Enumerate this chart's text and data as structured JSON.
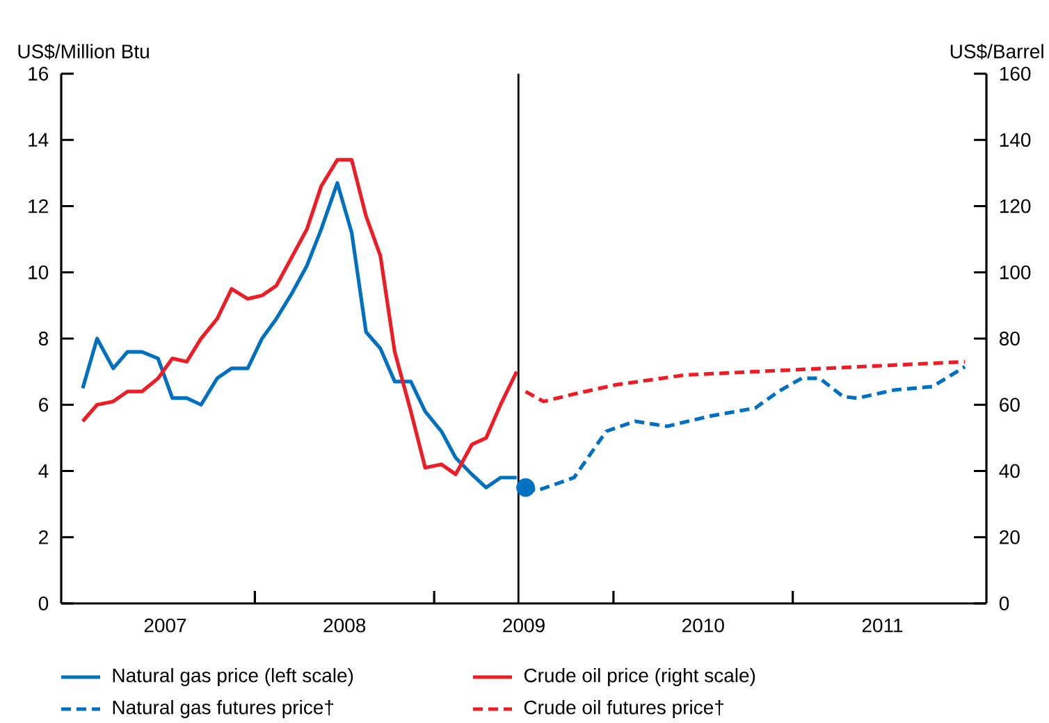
{
  "chart_data": {
    "type": "line",
    "ylabel": "US$/Million Btu",
    "y2label": "US$/Barrel",
    "xlim": [
      2006.92,
      2012.08
    ],
    "xticks": [
      {
        "value": 2007.5,
        "label": "2007"
      },
      {
        "value": 2008,
        "label": null
      },
      {
        "value": 2008.5,
        "label": "2008"
      },
      {
        "value": 2009,
        "label": null
      },
      {
        "value": 2009.5,
        "label": "2009"
      },
      {
        "value": 2010,
        "label": null
      },
      {
        "value": 2010.5,
        "label": "2010"
      },
      {
        "value": 2011,
        "label": null
      },
      {
        "value": 2011.5,
        "label": "2011"
      }
    ],
    "ylim": [
      0,
      16
    ],
    "yticks": [
      0,
      2,
      4,
      6,
      8,
      10,
      12,
      14,
      16
    ],
    "y2lim": [
      0,
      160
    ],
    "y2ticks": [
      0,
      20,
      40,
      60,
      80,
      100,
      120,
      140,
      160
    ],
    "legend": "bottom",
    "ref_lines": [
      {
        "axis": "x",
        "value": 2009.47
      }
    ],
    "series": [
      {
        "name": "Natural gas price (left scale)",
        "color": "#0070c0",
        "line_style": "solid",
        "x": [
          2007.04,
          2007.12,
          2007.21,
          2007.29,
          2007.37,
          2007.46,
          2007.54,
          2007.62,
          2007.7,
          2007.79,
          2007.87,
          2007.96,
          2008.04,
          2008.12,
          2008.21,
          2008.29,
          2008.37,
          2008.46,
          2008.54,
          2008.62,
          2008.7,
          2008.78,
          2008.87,
          2008.95,
          2009.04,
          2009.12,
          2009.21,
          2009.29,
          2009.37,
          2009.46
        ],
        "values": [
          6.5,
          8.0,
          7.1,
          7.6,
          7.6,
          7.4,
          6.2,
          6.2,
          6.0,
          6.8,
          7.1,
          7.1,
          8.0,
          8.6,
          9.4,
          10.2,
          11.3,
          12.7,
          11.2,
          8.2,
          7.7,
          6.7,
          6.7,
          5.8,
          5.2,
          4.4,
          3.9,
          3.5,
          3.8,
          3.8
        ]
      },
      {
        "name": "Crude oil price (right scale)",
        "color": "#ee1c25",
        "axis": "y2",
        "line_style": "solid",
        "x": [
          2007.04,
          2007.12,
          2007.21,
          2007.29,
          2007.37,
          2007.46,
          2007.54,
          2007.62,
          2007.7,
          2007.79,
          2007.87,
          2007.96,
          2008.04,
          2008.12,
          2008.21,
          2008.29,
          2008.37,
          2008.46,
          2008.54,
          2008.62,
          2008.7,
          2008.78,
          2008.87,
          2008.95,
          2009.04,
          2009.12,
          2009.21,
          2009.29,
          2009.37,
          2009.46
        ],
        "values": [
          55,
          60,
          61,
          64,
          64,
          68,
          74,
          73,
          80,
          86,
          95,
          92,
          93,
          96,
          105,
          113,
          126,
          134,
          134,
          117,
          105,
          76,
          58,
          41,
          42,
          39,
          48,
          50,
          60,
          70
        ]
      },
      {
        "name": "Natural gas futures price†",
        "color": "#0070c0",
        "line_style": "dashed",
        "x": [
          2009.51,
          2009.57,
          2009.78,
          2009.96,
          2010.12,
          2010.3,
          2010.53,
          2010.79,
          2010.92,
          2011.05,
          2011.15,
          2011.28,
          2011.36,
          2011.57,
          2011.78,
          2011.96
        ],
        "values": [
          3.5,
          3.4,
          3.8,
          5.2,
          5.5,
          5.35,
          5.65,
          5.9,
          6.4,
          6.8,
          6.8,
          6.25,
          6.2,
          6.45,
          6.55,
          7.15
        ]
      },
      {
        "name": "Crude oil futures price†",
        "color": "#ee1c25",
        "axis": "y2",
        "line_style": "dashed",
        "x": [
          2009.51,
          2009.61,
          2009.76,
          2010.01,
          2010.4,
          2010.79,
          2011.18,
          2011.57,
          2011.96
        ],
        "values": [
          64,
          61,
          63,
          66,
          69,
          70,
          71,
          72,
          73
        ]
      },
      {
        "type": "scatter",
        "color": "#0070c0",
        "marker": "circle",
        "x": [
          2009.51
        ],
        "values": [
          3.5
        ]
      }
    ]
  }
}
